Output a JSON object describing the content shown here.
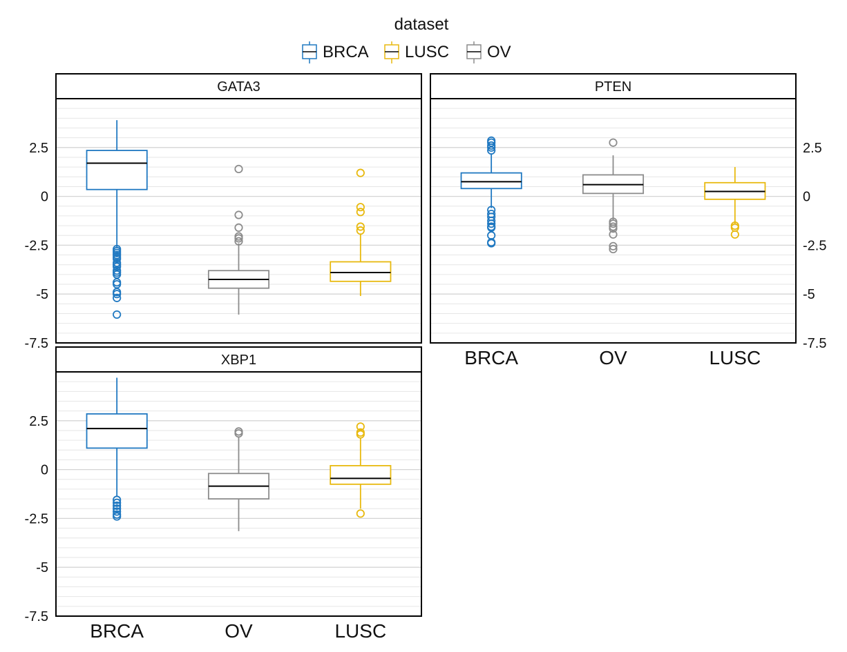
{
  "colors": {
    "BRCA": "#1f78c1",
    "LUSC": "#e8b90e",
    "OV": "#8c8c8c",
    "median": "#000000",
    "grid": "#e6e6e6",
    "grid_zero": "#d4d4d4"
  },
  "legend": {
    "title": "dataset",
    "items": [
      "BRCA",
      "LUSC",
      "OV"
    ]
  },
  "chart_data": {
    "type": "boxplot",
    "legend_title": "dataset",
    "legend_placement": "top",
    "categories": [
      "BRCA",
      "OV",
      "LUSC"
    ],
    "ylim": [
      -7.5,
      5
    ],
    "yticks": [
      2.5,
      0,
      -2.5,
      -5,
      -7.5
    ],
    "ytick_labels": [
      "2.5",
      "0",
      "-2.5",
      "-5",
      "-7.5"
    ],
    "grid": true,
    "panels": [
      {
        "title": "GATA3",
        "boxes": [
          {
            "group": "BRCA",
            "q1": 0.35,
            "median": 1.7,
            "q3": 2.35,
            "whisker_low": -2.6,
            "whisker_high": 3.9,
            "outliers": [
              -2.7,
              -2.8,
              -2.9,
              -3.0,
              -3.1,
              -3.2,
              -3.4,
              -3.5,
              -3.6,
              -3.8,
              -3.9,
              -4.0,
              -4.4,
              -4.5,
              -4.9,
              -5.0,
              -5.2,
              -6.05
            ]
          },
          {
            "group": "OV",
            "q1": -4.7,
            "median": -4.25,
            "q3": -3.8,
            "whisker_low": -6.05,
            "whisker_high": -2.4,
            "outliers": [
              1.4,
              -0.95,
              -1.6,
              -2.05,
              -2.15,
              -2.3
            ]
          },
          {
            "group": "LUSC",
            "q1": -4.35,
            "median": -3.9,
            "q3": -3.35,
            "whisker_low": -5.1,
            "whisker_high": -1.9,
            "outliers": [
              1.2,
              -0.55,
              -0.8,
              -1.55,
              -1.75
            ]
          }
        ]
      },
      {
        "title": "PTEN",
        "boxes": [
          {
            "group": "BRCA",
            "q1": 0.4,
            "median": 0.75,
            "q3": 1.2,
            "whisker_low": -0.6,
            "whisker_high": 2.2,
            "outliers": [
              2.35,
              2.5,
              2.6,
              2.75,
              2.85,
              -0.7,
              -0.9,
              -1.05,
              -1.25,
              -1.4,
              -1.55,
              -1.6,
              -2.0,
              -2.35,
              -2.4
            ]
          },
          {
            "group": "OV",
            "q1": 0.15,
            "median": 0.6,
            "q3": 1.1,
            "whisker_low": -1.2,
            "whisker_high": 2.1,
            "outliers": [
              2.75,
              -1.3,
              -1.4,
              -1.55,
              -1.65,
              -1.95,
              -2.55,
              -2.7
            ]
          },
          {
            "group": "LUSC",
            "q1": -0.15,
            "median": 0.25,
            "q3": 0.7,
            "whisker_low": -1.4,
            "whisker_high": 1.5,
            "outliers": [
              -1.5,
              -1.6,
              -1.95
            ]
          }
        ]
      },
      {
        "title": "XBP1",
        "boxes": [
          {
            "group": "BRCA",
            "q1": 1.1,
            "median": 2.1,
            "q3": 2.85,
            "whisker_low": -1.4,
            "whisker_high": 4.7,
            "outliers": [
              -1.55,
              -1.7,
              -1.85,
              -2.0,
              -2.15,
              -2.3,
              -2.4
            ]
          },
          {
            "group": "OV",
            "q1": -1.5,
            "median": -0.85,
            "q3": -0.2,
            "whisker_low": -3.15,
            "whisker_high": 1.7,
            "outliers": [
              1.85,
              1.95
            ]
          },
          {
            "group": "LUSC",
            "q1": -0.75,
            "median": -0.45,
            "q3": 0.2,
            "whisker_low": -2.0,
            "whisker_high": 1.6,
            "outliers": [
              1.8,
              1.9,
              2.2,
              -2.25
            ]
          }
        ]
      }
    ]
  }
}
